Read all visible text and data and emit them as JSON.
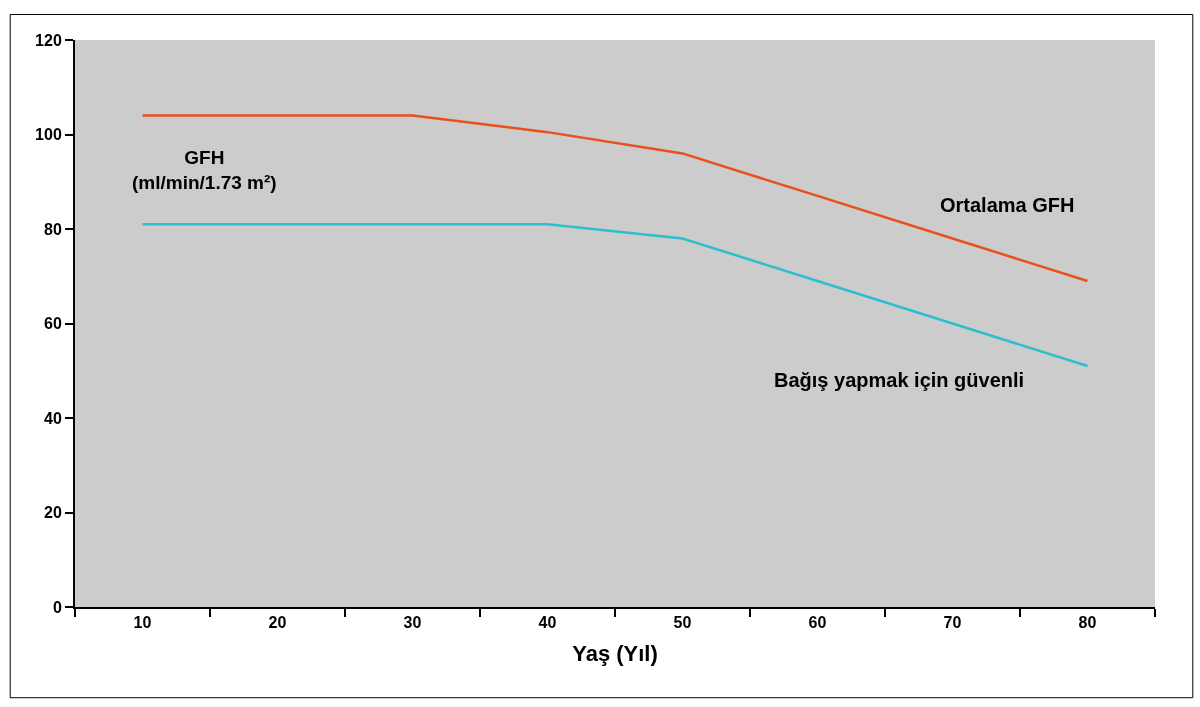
{
  "chart_data": {
    "type": "line",
    "xlabel": "Yaş (Yıl)",
    "ylabel": "GFH\n(ml/min/1.73 m²)",
    "categories": [
      "10",
      "20",
      "30",
      "40",
      "50",
      "60",
      "70",
      "80"
    ],
    "series": [
      {
        "name": "Ortalama GFH",
        "color": "#e8501e",
        "values": [
          104,
          104,
          104,
          100.5,
          96,
          87,
          78,
          69
        ]
      },
      {
        "name": "Bağış yapmak için güvenli",
        "color": "#2bbfcf",
        "values": [
          81,
          81,
          81,
          81,
          78,
          69,
          60,
          51
        ]
      }
    ],
    "ylim": [
      0,
      120
    ],
    "yticks": [
      0,
      20,
      40,
      60,
      80,
      100,
      120
    ],
    "grid": false,
    "legend": false,
    "marker": "none",
    "line_style": "solid"
  }
}
